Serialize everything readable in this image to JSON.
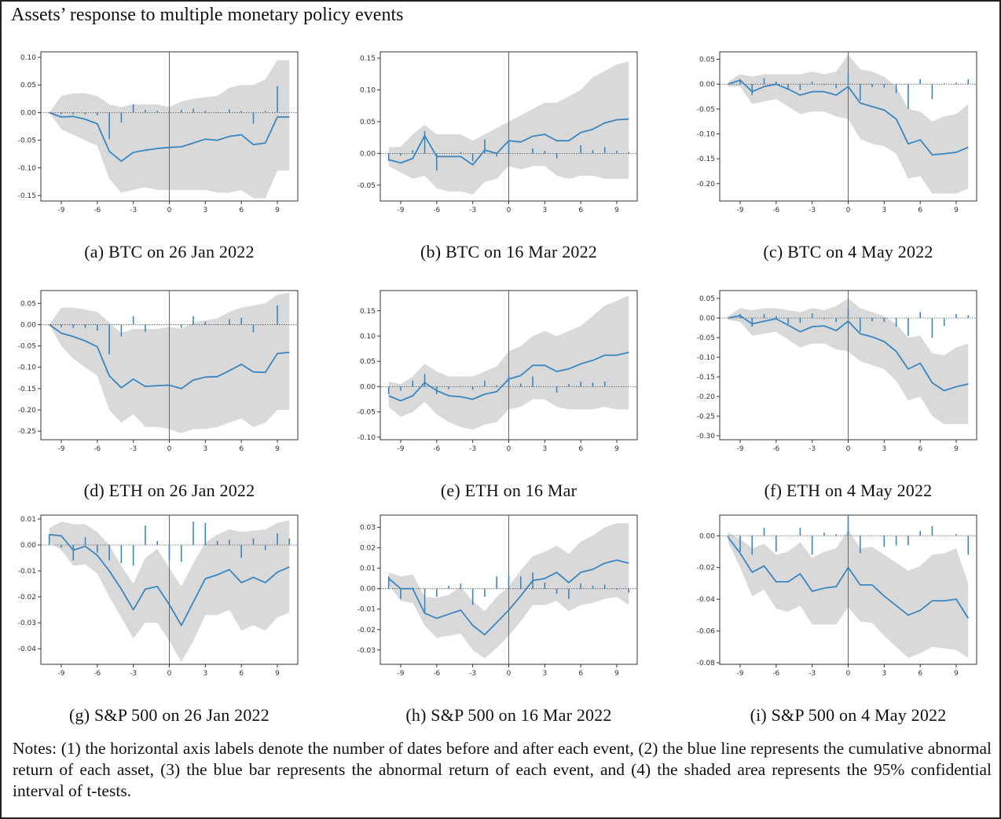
{
  "figure_title": "Assets’ response to multiple monetary policy events",
  "notes": "Notes: (1) the horizontal axis labels denote the number of dates before and after each event, (2) the blue line represents the cumulative abnormal return of each asset, (3) the blue bar represents the abnormal return of each event, and (4) the shaded area represents the 95% confidential interval of t-tests.",
  "colors": {
    "line": "#3a86c0",
    "band": "#d9d9d9",
    "zero_line": "#555555",
    "event_line": "#666666"
  },
  "chart_data": [
    {
      "type": "line",
      "caption": "(a) BTC on 26 Jan 2022",
      "x": [
        -10,
        -9,
        -8,
        -7,
        -6,
        -5,
        -4,
        -3,
        -2,
        -1,
        0,
        1,
        2,
        3,
        4,
        5,
        6,
        7,
        8,
        9,
        10
      ],
      "xticks": [
        -9,
        -6,
        -3,
        0,
        3,
        6,
        9
      ],
      "xlim": [
        -10.7,
        10.7
      ],
      "ylim": [
        -0.16,
        0.11
      ],
      "yticks": [
        "0.10",
        "0.05",
        "0.00",
        "-0.05",
        "-0.10",
        "-0.15"
      ],
      "car": [
        0,
        -0.008,
        -0.007,
        -0.012,
        -0.02,
        -0.07,
        -0.088,
        -0.072,
        -0.068,
        -0.065,
        -0.063,
        -0.062,
        -0.055,
        -0.048,
        -0.05,
        -0.043,
        -0.04,
        -0.058,
        -0.055,
        -0.008,
        -0.008
      ],
      "ar": [
        0,
        -0.003,
        -0.003,
        -0.003,
        -0.005,
        -0.048,
        -0.018,
        0.015,
        0.005,
        0.003,
        0.002,
        0.005,
        0.007,
        0.003,
        0.001,
        0.006,
        0.003,
        -0.02,
        0.003,
        0.048,
        0
      ],
      "ci_upper": [
        0,
        0.03,
        0.035,
        0.035,
        0.03,
        0.015,
        0.01,
        0.015,
        0.015,
        0.015,
        0.01,
        0.02,
        0.025,
        0.028,
        0.03,
        0.045,
        0.05,
        0.05,
        0.06,
        0.095,
        0.095
      ],
      "ci_lower": [
        0,
        -0.03,
        -0.04,
        -0.05,
        -0.06,
        -0.12,
        -0.145,
        -0.14,
        -0.135,
        -0.14,
        -0.14,
        -0.14,
        -0.14,
        -0.14,
        -0.145,
        -0.145,
        -0.14,
        -0.155,
        -0.155,
        -0.105,
        -0.105
      ]
    },
    {
      "type": "line",
      "caption": "(b) BTC on 16 Mar 2022",
      "x": [
        -10,
        -9,
        -8,
        -7,
        -6,
        -5,
        -4,
        -3,
        -2,
        -1,
        0,
        1,
        2,
        3,
        4,
        5,
        6,
        7,
        8,
        9,
        10
      ],
      "xticks": [
        -9,
        -6,
        -3,
        0,
        3,
        6,
        9
      ],
      "xlim": [
        -10.7,
        10.7
      ],
      "ylim": [
        -0.075,
        0.16
      ],
      "yticks": [
        "0.15",
        "0.10",
        "0.05",
        "0.00",
        "-0.05"
      ],
      "car": [
        -0.01,
        -0.015,
        -0.008,
        0.028,
        -0.005,
        -0.005,
        -0.005,
        -0.018,
        0.005,
        0,
        0.02,
        0.018,
        0.027,
        0.03,
        0.02,
        0.02,
        0.033,
        0.038,
        0.048,
        0.053,
        0.054
      ],
      "ar": [
        -0.012,
        -0.003,
        0.005,
        0.035,
        -0.027,
        0,
        0.002,
        -0.012,
        0.022,
        -0.005,
        0.02,
        0,
        0.008,
        0.004,
        -0.008,
        0,
        0.013,
        0.005,
        0.01,
        0.004,
        0.002
      ],
      "ci_upper": [
        0.01,
        0.01,
        0.03,
        0.045,
        0.03,
        0.03,
        0.03,
        0.02,
        0.03,
        0.04,
        0.05,
        0.06,
        0.07,
        0.08,
        0.08,
        0.09,
        0.1,
        0.12,
        0.13,
        0.14,
        0.145
      ],
      "ci_lower": [
        -0.02,
        -0.03,
        -0.04,
        -0.035,
        -0.055,
        -0.06,
        -0.06,
        -0.065,
        -0.045,
        -0.04,
        -0.02,
        -0.025,
        -0.02,
        -0.02,
        -0.035,
        -0.04,
        -0.035,
        -0.035,
        -0.04,
        -0.04,
        -0.04
      ]
    },
    {
      "type": "line",
      "caption": "(c) BTC on 4 May 2022",
      "x": [
        -10,
        -9,
        -8,
        -7,
        -6,
        -5,
        -4,
        -3,
        -2,
        -1,
        0,
        1,
        2,
        3,
        4,
        5,
        6,
        7,
        8,
        9,
        10
      ],
      "xticks": [
        -9,
        -6,
        -3,
        0,
        3,
        6,
        9
      ],
      "xlim": [
        -10.7,
        10.7
      ],
      "ylim": [
        -0.235,
        0.065
      ],
      "yticks": [
        "0.05",
        "0.00",
        "-0.05",
        "-0.10",
        "-0.15",
        "-0.20"
      ],
      "car": [
        0,
        0.008,
        -0.015,
        -0.005,
        0,
        -0.01,
        -0.022,
        -0.015,
        -0.015,
        -0.022,
        -0.005,
        -0.038,
        -0.045,
        -0.052,
        -0.07,
        -0.12,
        -0.112,
        -0.142,
        -0.14,
        -0.137,
        -0.127
      ],
      "ar": [
        0,
        0.01,
        -0.022,
        0.012,
        0.005,
        -0.01,
        -0.012,
        0.005,
        -0.002,
        -0.008,
        0.022,
        -0.033,
        -0.006,
        -0.007,
        -0.018,
        -0.05,
        0.01,
        -0.03,
        0.002,
        0.003,
        0.01
      ],
      "ci_upper": [
        0.005,
        0.02,
        0.015,
        0.02,
        0.02,
        0.02,
        0.02,
        0.025,
        0.02,
        0.025,
        0.06,
        0.03,
        0.025,
        0.015,
        -0.005,
        -0.05,
        -0.055,
        -0.075,
        -0.065,
        -0.06,
        -0.04
      ],
      "ci_lower": [
        -0.005,
        -0.005,
        -0.04,
        -0.035,
        -0.03,
        -0.045,
        -0.06,
        -0.055,
        -0.055,
        -0.065,
        -0.07,
        -0.11,
        -0.12,
        -0.125,
        -0.14,
        -0.19,
        -0.185,
        -0.22,
        -0.22,
        -0.22,
        -0.21
      ]
    },
    {
      "type": "line",
      "caption": "(d) ETH on 26 Jan 2022",
      "x": [
        -10,
        -9,
        -8,
        -7,
        -6,
        -5,
        -4,
        -3,
        -2,
        -1,
        0,
        1,
        2,
        3,
        4,
        5,
        6,
        7,
        8,
        9,
        10
      ],
      "xticks": [
        -9,
        -6,
        -3,
        0,
        3,
        6,
        9
      ],
      "xlim": [
        -10.7,
        10.7
      ],
      "ylim": [
        -0.27,
        0.08
      ],
      "yticks": [
        "0.05",
        "0.00",
        "-0.05",
        "-0.10",
        "-0.15",
        "-0.20",
        "-0.25"
      ],
      "car": [
        0,
        -0.02,
        -0.028,
        -0.038,
        -0.052,
        -0.12,
        -0.148,
        -0.128,
        -0.145,
        -0.143,
        -0.142,
        -0.15,
        -0.13,
        -0.123,
        -0.122,
        -0.108,
        -0.093,
        -0.111,
        -0.112,
        -0.068,
        -0.065
      ],
      "ar": [
        0,
        -0.006,
        -0.008,
        -0.008,
        -0.014,
        -0.07,
        -0.028,
        0.02,
        -0.017,
        0.001,
        0.001,
        -0.008,
        0.02,
        0.007,
        0.001,
        0.013,
        0.016,
        -0.018,
        0,
        0.045,
        0
      ],
      "ci_upper": [
        0,
        0.04,
        0.04,
        0.035,
        0.03,
        0.005,
        -0.02,
        -0.01,
        -0.01,
        -0.01,
        -0.005,
        -0.01,
        0.005,
        0.01,
        0.015,
        0.03,
        0.04,
        0.045,
        0.05,
        0.07,
        0.075
      ],
      "ci_lower": [
        0,
        -0.05,
        -0.08,
        -0.1,
        -0.12,
        -0.2,
        -0.23,
        -0.21,
        -0.24,
        -0.24,
        -0.245,
        -0.255,
        -0.245,
        -0.245,
        -0.24,
        -0.23,
        -0.22,
        -0.24,
        -0.23,
        -0.2,
        -0.2
      ]
    },
    {
      "type": "line",
      "caption": "(e) ETH on 16 Mar",
      "x": [
        -10,
        -9,
        -8,
        -7,
        -6,
        -5,
        -4,
        -3,
        -2,
        -1,
        0,
        1,
        2,
        3,
        4,
        5,
        6,
        7,
        8,
        9,
        10
      ],
      "xticks": [
        -9,
        -6,
        -3,
        0,
        3,
        6,
        9
      ],
      "xlim": [
        -10.7,
        10.7
      ],
      "ylim": [
        -0.105,
        0.19
      ],
      "yticks": [
        "0.15",
        "0.10",
        "0.05",
        "0.00",
        "-0.05",
        "-0.10"
      ],
      "car": [
        -0.018,
        -0.028,
        -0.018,
        0.008,
        -0.008,
        -0.018,
        -0.02,
        -0.025,
        -0.015,
        -0.01,
        0.015,
        0.022,
        0.042,
        0.042,
        0.03,
        0.035,
        0.045,
        0.052,
        0.062,
        0.062,
        0.068
      ],
      "ar": [
        -0.015,
        -0.008,
        0.012,
        0.025,
        -0.015,
        -0.005,
        0.001,
        -0.006,
        0.012,
        0.003,
        0.022,
        0.006,
        0.02,
        0,
        -0.012,
        0.005,
        0.01,
        0.008,
        0.01,
        0,
        0
      ],
      "ci_upper": [
        0.01,
        0.005,
        0.02,
        0.045,
        0.03,
        0.02,
        0.02,
        0.02,
        0.03,
        0.04,
        0.07,
        0.08,
        0.1,
        0.11,
        0.1,
        0.11,
        0.12,
        0.14,
        0.16,
        0.17,
        0.18
      ],
      "ci_lower": [
        -0.04,
        -0.06,
        -0.05,
        -0.03,
        -0.055,
        -0.07,
        -0.08,
        -0.085,
        -0.075,
        -0.07,
        -0.045,
        -0.04,
        -0.025,
        -0.025,
        -0.04,
        -0.045,
        -0.045,
        -0.045,
        -0.04,
        -0.045,
        -0.045
      ]
    },
    {
      "type": "line",
      "caption": "(f) ETH on 4 May 2022",
      "x": [
        -10,
        -9,
        -8,
        -7,
        -6,
        -5,
        -4,
        -3,
        -2,
        -1,
        0,
        1,
        2,
        3,
        4,
        5,
        6,
        7,
        8,
        9,
        10
      ],
      "xticks": [
        -9,
        -6,
        -3,
        0,
        3,
        6,
        9
      ],
      "xlim": [
        -10.7,
        10.7
      ],
      "ylim": [
        -0.31,
        0.07
      ],
      "yticks": [
        "0.05",
        "0.00",
        "-0.05",
        "-0.10",
        "-0.15",
        "-0.20",
        "-0.25",
        "-0.30"
      ],
      "car": [
        0,
        0.006,
        -0.015,
        -0.008,
        -0.002,
        -0.018,
        -0.035,
        -0.022,
        -0.02,
        -0.032,
        -0.008,
        -0.04,
        -0.048,
        -0.06,
        -0.085,
        -0.13,
        -0.115,
        -0.165,
        -0.185,
        -0.175,
        -0.168
      ],
      "ar": [
        0,
        0.01,
        -0.022,
        0.01,
        0.005,
        -0.015,
        -0.012,
        0.012,
        -0.003,
        -0.01,
        0.024,
        -0.035,
        -0.008,
        -0.01,
        -0.022,
        -0.045,
        0.015,
        -0.05,
        -0.02,
        0.01,
        0.007
      ],
      "ci_upper": [
        0.005,
        0.025,
        0.02,
        0.025,
        0.025,
        0.02,
        0.015,
        0.025,
        0.02,
        0.03,
        0.05,
        0.025,
        0.015,
        0.005,
        -0.015,
        -0.05,
        -0.045,
        -0.09,
        -0.095,
        -0.075,
        -0.065
      ],
      "ci_lower": [
        -0.005,
        -0.01,
        -0.045,
        -0.04,
        -0.035,
        -0.055,
        -0.075,
        -0.065,
        -0.065,
        -0.08,
        -0.085,
        -0.11,
        -0.12,
        -0.13,
        -0.16,
        -0.21,
        -0.2,
        -0.25,
        -0.27,
        -0.27,
        -0.27
      ]
    },
    {
      "type": "line",
      "caption": "(g) S&P 500 on 26 Jan 2022",
      "x": [
        -10,
        -9,
        -8,
        -7,
        -6,
        -5,
        -4,
        -3,
        -2,
        -1,
        0,
        1,
        2,
        3,
        4,
        5,
        6,
        7,
        8,
        9,
        10
      ],
      "xticks": [
        -9,
        -6,
        -3,
        0,
        3,
        6,
        9
      ],
      "xlim": [
        -10.7,
        10.7
      ],
      "ylim": [
        -0.046,
        0.0115
      ],
      "yticks": [
        "0.01",
        "0.00",
        "-0.01",
        "-0.02",
        "-0.03",
        "-0.04"
      ],
      "car": [
        0.004,
        0.0035,
        -0.002,
        -0.0005,
        -0.004,
        -0.01,
        -0.017,
        -0.025,
        -0.017,
        -0.016,
        -0.023,
        -0.031,
        -0.022,
        -0.013,
        -0.0115,
        -0.0095,
        -0.0145,
        -0.0125,
        -0.0145,
        -0.0105,
        -0.0085
      ],
      "ar": [
        0.004,
        -0.001,
        -0.006,
        0.003,
        -0.003,
        -0.006,
        -0.007,
        -0.008,
        0.0075,
        0.0015,
        -0.006,
        -0.0065,
        0.009,
        0.0085,
        0.0015,
        0.002,
        -0.005,
        0.0025,
        -0.002,
        0.0045,
        0.0025
      ],
      "ci_upper": [
        0.0065,
        0.009,
        0.008,
        0.008,
        0.005,
        0,
        -0.008,
        -0.015,
        -0.005,
        -0.0015,
        -0.009,
        -0.016,
        -0.007,
        0.001,
        0.004,
        0.006,
        0.005,
        0.0055,
        0.006,
        0.0085,
        0.0095
      ],
      "ci_lower": [
        0.001,
        -0.002,
        -0.008,
        -0.0075,
        -0.011,
        -0.02,
        -0.028,
        -0.036,
        -0.03,
        -0.03,
        -0.037,
        -0.045,
        -0.037,
        -0.027,
        -0.027,
        -0.025,
        -0.033,
        -0.031,
        -0.033,
        -0.028,
        -0.026
      ]
    },
    {
      "type": "line",
      "caption": "(h) S&P 500 on 16 Mar 2022",
      "x": [
        -10,
        -9,
        -8,
        -7,
        -6,
        -5,
        -4,
        -3,
        -2,
        -1,
        0,
        1,
        2,
        3,
        4,
        5,
        6,
        7,
        8,
        9,
        10
      ],
      "xticks": [
        -9,
        -6,
        -3,
        0,
        3,
        6,
        9
      ],
      "xlim": [
        -10.7,
        10.7
      ],
      "ylim": [
        -0.037,
        0.036
      ],
      "yticks": [
        "0.03",
        "0.02",
        "0.01",
        "0.00",
        "-0.01",
        "-0.02",
        "-0.03"
      ],
      "car": [
        0.005,
        0,
        0,
        -0.012,
        -0.0145,
        -0.0125,
        -0.0105,
        -0.018,
        -0.0225,
        -0.0165,
        -0.0105,
        -0.0035,
        0.004,
        0.005,
        0.008,
        0.003,
        0.008,
        0.0095,
        0.0125,
        0.014,
        0.0125
      ],
      "ar": [
        0.006,
        -0.005,
        0.0005,
        -0.012,
        -0.004,
        0.0015,
        0.0025,
        -0.008,
        -0.004,
        0.006,
        0.0065,
        0.006,
        0.008,
        0.003,
        -0.0025,
        -0.005,
        0.0025,
        0.0015,
        0.002,
        -0.0005,
        -0.002
      ],
      "ci_upper": [
        0.008,
        0.006,
        0.007,
        -0.004,
        -0.0045,
        -0.003,
        0.001,
        -0.006,
        -0.011,
        -0.004,
        0.001,
        0.009,
        0.016,
        0.018,
        0.021,
        0.017,
        0.023,
        0.026,
        0.03,
        0.032,
        0.032
      ],
      "ci_lower": [
        0.002,
        -0.006,
        -0.007,
        -0.018,
        -0.024,
        -0.023,
        -0.022,
        -0.03,
        -0.034,
        -0.029,
        -0.023,
        -0.016,
        -0.008,
        -0.008,
        -0.006,
        -0.011,
        -0.008,
        -0.007,
        -0.005,
        -0.004,
        -0.008
      ]
    },
    {
      "type": "line",
      "caption": "(i) S&P 500 on 4 May 2022",
      "x": [
        -10,
        -9,
        -8,
        -7,
        -6,
        -5,
        -4,
        -3,
        -2,
        -1,
        0,
        1,
        2,
        3,
        4,
        5,
        6,
        7,
        8,
        9,
        10
      ],
      "xticks": [
        -9,
        -6,
        -3,
        0,
        3,
        6,
        9
      ],
      "xlim": [
        -10.7,
        10.7
      ],
      "ylim": [
        -0.081,
        0.013
      ],
      "yticks": [
        "0.00",
        "-0.02",
        "-0.04",
        "-0.06",
        "-0.08"
      ],
      "car": [
        -0.001,
        -0.011,
        -0.023,
        -0.019,
        -0.029,
        -0.029,
        -0.024,
        -0.035,
        -0.033,
        -0.032,
        -0.02,
        -0.031,
        -0.031,
        -0.038,
        -0.044,
        -0.05,
        -0.047,
        -0.041,
        -0.041,
        -0.04,
        -0.052
      ],
      "ar": [
        -0.001,
        -0.01,
        -0.012,
        0.005,
        -0.01,
        0,
        0.005,
        -0.012,
        0.002,
        0.001,
        0.012,
        -0.011,
        0,
        -0.007,
        -0.006,
        -0.006,
        0.003,
        0.006,
        0,
        0.001,
        -0.012
      ],
      "ci_upper": [
        0.002,
        -0.002,
        -0.008,
        -0.005,
        -0.012,
        -0.01,
        -0.004,
        -0.014,
        -0.01,
        -0.008,
        0.004,
        -0.008,
        -0.007,
        -0.012,
        -0.017,
        -0.022,
        -0.019,
        -0.012,
        -0.011,
        -0.008,
        -0.03
      ],
      "ci_lower": [
        -0.004,
        -0.02,
        -0.038,
        -0.034,
        -0.046,
        -0.048,
        -0.044,
        -0.056,
        -0.056,
        -0.056,
        -0.045,
        -0.054,
        -0.055,
        -0.063,
        -0.07,
        -0.077,
        -0.074,
        -0.07,
        -0.071,
        -0.072,
        -0.077
      ]
    }
  ]
}
